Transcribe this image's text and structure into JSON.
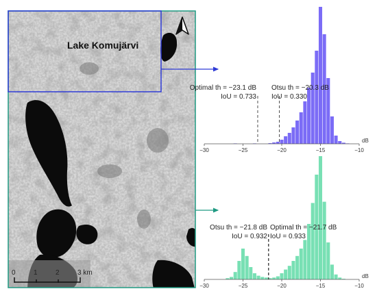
{
  "image": {
    "lake_label": "Lake Komujärvi",
    "north_icon": "north-arrow-icon",
    "scalebar": {
      "ticks": [
        "0",
        "1",
        "2",
        "3 km"
      ]
    },
    "colors": {
      "top_box": "#2f3bd6",
      "bottom_box": "#1f9a82"
    }
  },
  "chart_data": [
    {
      "type": "bar",
      "unit": "dB",
      "xlim": [
        -30,
        -10
      ],
      "ticks": [
        -30,
        -25,
        -20,
        -15,
        -10
      ],
      "tick_labels": [
        "−30",
        "−25",
        "−20",
        "−15",
        "−10"
      ],
      "color": "#7b6cf6",
      "bin_width": 0.5,
      "bins": [
        {
          "x": -26.0,
          "y": 0.3
        },
        {
          "x": -23.5,
          "y": 0.3
        },
        {
          "x": -21.5,
          "y": 0.5
        },
        {
          "x": -21.0,
          "y": 1.0
        },
        {
          "x": -20.5,
          "y": 1.5
        },
        {
          "x": -20.0,
          "y": 3.0
        },
        {
          "x": -19.5,
          "y": 5.5
        },
        {
          "x": -19.0,
          "y": 8.0
        },
        {
          "x": -18.5,
          "y": 12.0
        },
        {
          "x": -18.0,
          "y": 17.0
        },
        {
          "x": -17.5,
          "y": 23.0
        },
        {
          "x": -17.0,
          "y": 31.0
        },
        {
          "x": -16.5,
          "y": 41.0
        },
        {
          "x": -16.0,
          "y": 52.0
        },
        {
          "x": -15.5,
          "y": 68.0
        },
        {
          "x": -15.0,
          "y": 100.0
        },
        {
          "x": -14.5,
          "y": 80.0
        },
        {
          "x": -14.0,
          "y": 48.0
        },
        {
          "x": -13.5,
          "y": 20.0
        },
        {
          "x": -13.0,
          "y": 6.0
        },
        {
          "x": -12.5,
          "y": 2.0
        },
        {
          "x": -12.0,
          "y": 0.8
        },
        {
          "x": -11.5,
          "y": 0.3
        }
      ],
      "thresholds": [
        {
          "x": -23.1,
          "line1": "Optimal th = −23.1 dB",
          "line2": "IoU = 0.733"
        },
        {
          "x": -20.3,
          "line1": "Otsu th = −20.3 dB",
          "line2": "IoU = 0.330"
        }
      ]
    },
    {
      "type": "bar",
      "unit": "dB",
      "xlim": [
        -30,
        -10
      ],
      "ticks": [
        -30,
        -25,
        -20,
        -15,
        -10
      ],
      "tick_labels": [
        "−30",
        "−25",
        "−20",
        "−15",
        "−10"
      ],
      "color": "#78e0b4",
      "bin_width": 0.5,
      "bins": [
        {
          "x": -27.0,
          "y": 1.0
        },
        {
          "x": -26.5,
          "y": 2.0
        },
        {
          "x": -26.0,
          "y": 6.0
        },
        {
          "x": -25.5,
          "y": 15.0
        },
        {
          "x": -25.0,
          "y": 25.0
        },
        {
          "x": -24.5,
          "y": 19.0
        },
        {
          "x": -24.0,
          "y": 10.0
        },
        {
          "x": -23.5,
          "y": 5.0
        },
        {
          "x": -23.0,
          "y": 3.0
        },
        {
          "x": -22.5,
          "y": 2.0
        },
        {
          "x": -22.0,
          "y": 1.5
        },
        {
          "x": -21.5,
          "y": 1.0
        },
        {
          "x": -21.0,
          "y": 1.5
        },
        {
          "x": -20.5,
          "y": 2.5
        },
        {
          "x": -20.0,
          "y": 5.0
        },
        {
          "x": -19.5,
          "y": 8.0
        },
        {
          "x": -19.0,
          "y": 11.0
        },
        {
          "x": -18.5,
          "y": 15.0
        },
        {
          "x": -18.0,
          "y": 19.0
        },
        {
          "x": -17.5,
          "y": 25.0
        },
        {
          "x": -17.0,
          "y": 32.0
        },
        {
          "x": -16.5,
          "y": 45.0
        },
        {
          "x": -16.0,
          "y": 62.0
        },
        {
          "x": -15.5,
          "y": 85.0
        },
        {
          "x": -15.0,
          "y": 100.0
        },
        {
          "x": -14.5,
          "y": 63.0
        },
        {
          "x": -14.0,
          "y": 30.0
        },
        {
          "x": -13.5,
          "y": 12.0
        },
        {
          "x": -13.0,
          "y": 4.0
        },
        {
          "x": -12.5,
          "y": 1.5
        },
        {
          "x": -12.0,
          "y": 0.5
        }
      ],
      "thresholds": [
        {
          "x": -21.7,
          "line1": "Otsu th = −21.8 dB",
          "line2": "IoU = 0.932",
          "line3": "Optimal th = −21.7 dB",
          "line4": "IoU = 0.933"
        }
      ]
    }
  ]
}
